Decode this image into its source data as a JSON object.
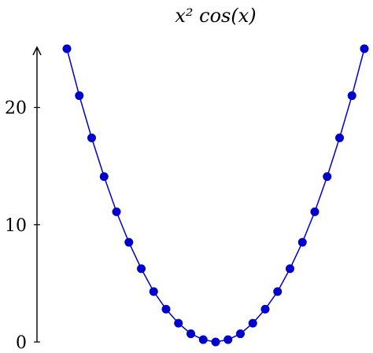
{
  "chart_data": {
    "type": "line",
    "title": "x² cos(x)",
    "xlabel": "",
    "ylabel": "",
    "x": [
      -5,
      -4.583,
      -4.167,
      -3.75,
      -3.333,
      -2.917,
      -2.5,
      -2.083,
      -1.667,
      -1.25,
      -0.833,
      -0.417,
      0,
      0.417,
      0.833,
      1.25,
      1.667,
      2.083,
      2.5,
      2.917,
      3.333,
      3.75,
      4.167,
      4.583,
      5
    ],
    "series": [
      {
        "values": [
          25,
          21,
          17.4,
          14.1,
          11.1,
          8.5,
          6.25,
          4.3,
          2.8,
          1.6,
          0.7,
          0.2,
          0,
          0.2,
          0.7,
          1.6,
          2.8,
          4.3,
          6.25,
          8.5,
          11.1,
          14.1,
          17.4,
          21,
          25
        ],
        "color": "#0000cc"
      }
    ],
    "ylim": [
      0,
      25
    ],
    "yticks": [
      0,
      10,
      20
    ],
    "ytick_labels": [
      "0",
      "10",
      "20"
    ],
    "grid": false,
    "legend": "none"
  }
}
